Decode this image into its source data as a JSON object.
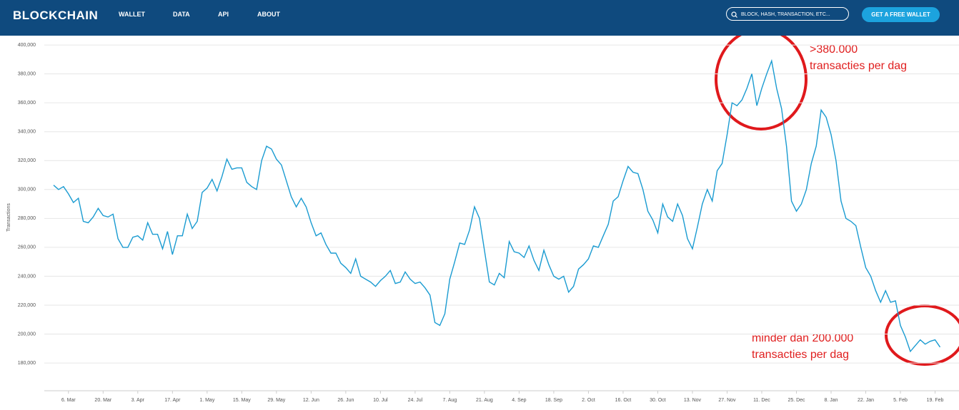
{
  "header": {
    "logo": "BLOCKCHAIN",
    "nav": [
      "WALLET",
      "DATA",
      "API",
      "ABOUT"
    ],
    "search_placeholder": "BLOCK, HASH, TRANSACTION, ETC...",
    "button": "GET A FREE WALLET"
  },
  "chart_data": {
    "type": "line",
    "y_label": "Transactions",
    "color": "#1a9bd1",
    "grid": true,
    "ylim": [
      160800,
      402500
    ],
    "yticks": [
      {
        "value": 180000,
        "label": "180,000"
      },
      {
        "value": 200000,
        "label": "200,000"
      },
      {
        "value": 220000,
        "label": "220,000"
      },
      {
        "value": 240000,
        "label": "240,000"
      },
      {
        "value": 260000,
        "label": "260,000"
      },
      {
        "value": 280000,
        "label": "280,000"
      },
      {
        "value": 300000,
        "label": "300,000"
      },
      {
        "value": 320000,
        "label": "320,000"
      },
      {
        "value": 340000,
        "label": "340,000"
      },
      {
        "value": 360000,
        "label": "360,000"
      },
      {
        "value": 380000,
        "label": "380,000"
      },
      {
        "value": 400000,
        "label": "400,000"
      }
    ],
    "categories": [
      null,
      null,
      null,
      "6. Mar",
      null,
      null,
      null,
      null,
      null,
      null,
      "20. Mar",
      null,
      null,
      null,
      null,
      null,
      null,
      "3. Apr",
      null,
      null,
      null,
      null,
      null,
      null,
      "17. Apr",
      null,
      null,
      null,
      null,
      null,
      null,
      "1. May",
      null,
      null,
      null,
      null,
      null,
      null,
      "15. May",
      null,
      null,
      null,
      null,
      null,
      null,
      "29. May",
      null,
      null,
      null,
      null,
      null,
      null,
      "12. Jun",
      null,
      null,
      null,
      null,
      null,
      null,
      "26. Jun",
      null,
      null,
      null,
      null,
      null,
      null,
      "10. Jul",
      null,
      null,
      null,
      null,
      null,
      null,
      "24. Jul",
      null,
      null,
      null,
      null,
      null,
      null,
      "7. Aug",
      null,
      null,
      null,
      null,
      null,
      null,
      "21. Aug",
      null,
      null,
      null,
      null,
      null,
      null,
      "4. Sep",
      null,
      null,
      null,
      null,
      null,
      null,
      "18. Sep",
      null,
      null,
      null,
      null,
      null,
      null,
      "2. Oct",
      null,
      null,
      null,
      null,
      null,
      null,
      "16. Oct",
      null,
      null,
      null,
      null,
      null,
      null,
      "30. Oct",
      null,
      null,
      null,
      null,
      null,
      null,
      "13. Nov",
      null,
      null,
      null,
      null,
      null,
      null,
      "27. Nov",
      null,
      null,
      null,
      null,
      null,
      null,
      "11. Dec",
      null,
      null,
      null,
      null,
      null,
      null,
      "25. Dec",
      null,
      null,
      null,
      null,
      null,
      null,
      "8. Jan",
      null,
      null,
      null,
      null,
      null,
      null,
      "22. Jan",
      null,
      null,
      null,
      null,
      null,
      null,
      "5. Feb",
      null,
      null,
      null,
      null,
      null,
      null,
      "19. Feb",
      null
    ],
    "values": [
      303000,
      300000,
      302000,
      297000,
      291000,
      294000,
      278000,
      277000,
      281000,
      287000,
      282000,
      281000,
      283000,
      266000,
      260000,
      260000,
      267000,
      268000,
      265000,
      277000,
      269000,
      269000,
      259000,
      271000,
      255000,
      268000,
      268000,
      283000,
      273000,
      278000,
      298000,
      301000,
      307000,
      299000,
      309000,
      321000,
      314000,
      315000,
      315000,
      305000,
      302000,
      300000,
      320000,
      330000,
      328000,
      321000,
      317000,
      306000,
      295000,
      288000,
      294000,
      288000,
      277000,
      268000,
      270000,
      262000,
      256000,
      256000,
      249000,
      246000,
      242000,
      252000,
      240000,
      238000,
      236000,
      233000,
      237000,
      240000,
      244000,
      235000,
      236000,
      243000,
      238000,
      235000,
      236000,
      232000,
      227000,
      208000,
      206000,
      214000,
      238000,
      250000,
      263000,
      262000,
      272000,
      288000,
      280000,
      258000,
      236000,
      234000,
      242000,
      239000,
      264000,
      257000,
      256000,
      253000,
      261000,
      251000,
      244000,
      258000,
      248000,
      240000,
      238000,
      240000,
      229000,
      233000,
      245000,
      248000,
      252000,
      261000,
      260000,
      268000,
      276000,
      292000,
      295000,
      306000,
      316000,
      312000,
      311000,
      300000,
      285000,
      279000,
      270000,
      290000,
      281000,
      278000,
      290000,
      282000,
      266000,
      259000,
      274000,
      290000,
      300000,
      292000,
      313000,
      318000,
      338000,
      360000,
      358000,
      362000,
      370000,
      380000,
      358000,
      370000,
      380000,
      389000,
      370000,
      356000,
      330000,
      292000,
      285000,
      290000,
      300000,
      318000,
      330000,
      355000,
      350000,
      338000,
      320000,
      292000,
      280000,
      278000,
      275000,
      260000,
      246000,
      240000,
      230000,
      222000,
      230000,
      222000,
      223000,
      206000,
      198000,
      188000,
      192000,
      196000,
      193000,
      195000,
      196000,
      191000
    ],
    "annotations": [
      [
        ">380.000",
        "transacties per dag"
      ],
      [
        "minder dan 200.000",
        "transacties per dag"
      ]
    ]
  }
}
